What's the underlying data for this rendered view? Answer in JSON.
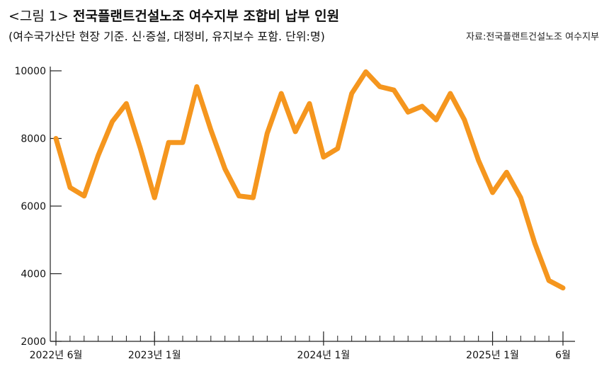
{
  "header": {
    "title_prefix": "<그림 1>",
    "title": "전국플랜트건설노조 여수지부 조합비 납부 인원",
    "subtitle": "(여수국가산단 현장 기준. 신·증설, 대정비, 유지보수 포함. 단위:명)",
    "source": "자료:전국플랜트건설노조 여수지부"
  },
  "chart_data": {
    "type": "line",
    "title": "전국플랜트건설노조 여수지부 조합비 납부 인원",
    "subtitle": "(여수국가산단 현장 기준. 신·증설, 대정비, 유지보수 포함. 단위:명)",
    "xlabel": "",
    "ylabel": "",
    "ylim": [
      2000,
      10000
    ],
    "yticks": [
      2000,
      4000,
      6000,
      8000,
      10000
    ],
    "grid": false,
    "legend": "none",
    "x_range": [
      "2022-06",
      "2025-06"
    ],
    "x": [
      "2022-06",
      "2022-07",
      "2022-08",
      "2022-09",
      "2022-10",
      "2022-11",
      "2022-12",
      "2023-01",
      "2023-02",
      "2023-03",
      "2023-04",
      "2023-05",
      "2023-06",
      "2023-07",
      "2023-08",
      "2023-09",
      "2023-10",
      "2023-11",
      "2023-12",
      "2024-01",
      "2024-02",
      "2024-03",
      "2024-04",
      "2024-05",
      "2024-06",
      "2024-07",
      "2024-08",
      "2024-09",
      "2024-10",
      "2024-11",
      "2024-12",
      "2025-01",
      "2025-02",
      "2025-03",
      "2025-04",
      "2025-05",
      "2025-06"
    ],
    "xtick_labels": [
      {
        "x": "2022-06",
        "label": "2022년 6월"
      },
      {
        "x": "2023-01",
        "label": "2023년 1월"
      },
      {
        "x": "2024-01",
        "label": "2024년 1월"
      },
      {
        "x": "2025-01",
        "label": "2025년 1월"
      },
      {
        "x": "2025-06",
        "label": "6월"
      }
    ],
    "series": [
      {
        "values": [
          8000,
          6550,
          6300,
          7500,
          8500,
          9030,
          7700,
          6250,
          7880,
          7880,
          9530,
          8250,
          7100,
          6300,
          6250,
          8150,
          9330,
          8200,
          9030,
          7450,
          7700,
          9330,
          9970,
          9530,
          9430,
          8780,
          8950,
          8550,
          9330,
          8550,
          7350,
          6400,
          7000,
          6250,
          4900,
          3800,
          3580
        ],
        "color": "#F5961E"
      }
    ]
  }
}
